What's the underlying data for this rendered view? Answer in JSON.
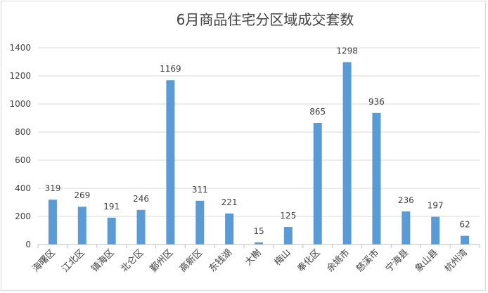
{
  "chart_data": {
    "type": "bar",
    "title": "6月商品住宅分区域成交套数",
    "xlabel": "",
    "ylabel": "",
    "categories": [
      "海曙区",
      "江北区",
      "镇海区",
      "北仑区",
      "鄞州区",
      "高新区",
      "东钱湖",
      "大榭",
      "梅山",
      "奉化区",
      "余姚市",
      "慈溪市",
      "宁海县",
      "象山县",
      "杭州湾"
    ],
    "values": [
      319,
      269,
      191,
      246,
      1169,
      311,
      221,
      15,
      125,
      865,
      1298,
      936,
      236,
      197,
      62
    ],
    "ylim": [
      0,
      1400
    ],
    "yticks": [
      0,
      200,
      400,
      600,
      800,
      1000,
      1200,
      1400
    ],
    "grid": true,
    "legend": "none",
    "bar_color": "#5b9bd5"
  }
}
